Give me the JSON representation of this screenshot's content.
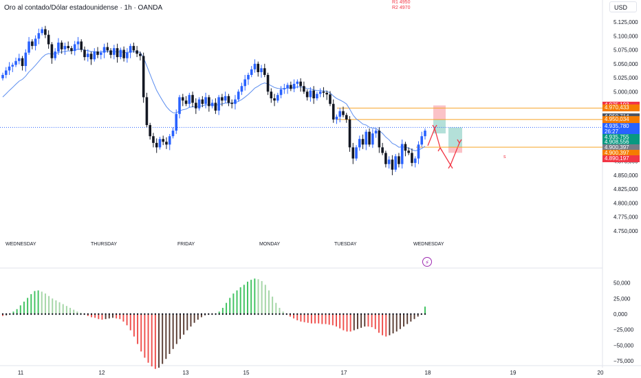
{
  "header": {
    "title": "Oro al contado/Dólar estadounidense · 1h · OANDA",
    "currency": "USD",
    "annotations": [
      "R1 4950",
      "R2 4970"
    ],
    "note": "s"
  },
  "colors": {
    "up": "#2962ff",
    "down": "#131722",
    "ma": "#5b8def",
    "osc_pos_bright": "#43c463",
    "osc_pos_dim": "#a5d6a7",
    "osc_neg_bright": "#ef5350",
    "osc_neg_dim": "#5d4037",
    "level": "#f7a325",
    "current": "#2962ff",
    "arrow": "#f23645"
  },
  "chart_data": [
    {
      "type": "candlestick",
      "title": "Oro al contado/Dólar estadounidense · 1h · OANDA",
      "ylim": [
        4730000,
        5150000
      ],
      "y_ticks": [
        "5.125,000",
        "5.100,000",
        "5.075,000",
        "5.050,000",
        "5.025,000",
        "5.000,000",
        "4.975,000",
        "4.950,000",
        "4.925,000",
        "4.900,000",
        "4.875,000",
        "4.850,000",
        "4.825,000",
        "4.800,000",
        "4.775,000",
        "4.750,000"
      ],
      "x_session_labels": [
        "WEDNESDAY",
        "THURSDAY",
        "FRIDAY",
        "MONDAY",
        "TUESDAY",
        "WEDNESDAY"
      ],
      "x_dates": [
        "11",
        "12",
        "13",
        "15",
        "17",
        "18",
        "19",
        "20"
      ],
      "closes": [
        5030,
        5038,
        5045,
        5048,
        5055,
        5060,
        5046,
        5070,
        5090,
        5082,
        5095,
        5105,
        5112,
        5102,
        5085,
        5060,
        5072,
        5088,
        5076,
        5082,
        5078,
        5073,
        5085,
        5090,
        5075,
        5062,
        5068,
        5058,
        5072,
        5066,
        5070,
        5080,
        5074,
        5066,
        5078,
        5062,
        5075,
        5060,
        5070,
        5082,
        5074,
        5068,
        5064,
        4990,
        4940,
        4920,
        4908,
        4900,
        4915,
        4910,
        4905,
        4920,
        4930,
        4960,
        4990,
        4984,
        4978,
        4994,
        4980,
        4970,
        4986,
        4978,
        4990,
        4974,
        4980,
        4966,
        4990,
        4984,
        4992,
        4980,
        4978,
        4986,
        5000,
        5010,
        5022,
        5030,
        5040,
        5050,
        5035,
        5042,
        5030,
        5000,
        4988,
        4984,
        4994,
        5004,
        5006,
        5012,
        5005,
        5014,
        5018,
        5010,
        5000,
        4990,
        5002,
        4988,
        4996,
        5000,
        4998,
        4995,
        4978,
        4950,
        4955,
        4965,
        4958,
        4950,
        4900,
        4880,
        4900,
        4915,
        4905,
        4928,
        4905,
        4925,
        4930,
        4900,
        4890,
        4870,
        4878,
        4860,
        4884,
        4870,
        4906,
        4894,
        4890,
        4872,
        4880,
        4905,
        4920,
        4930
      ],
      "ma_start": 4985,
      "price_tags": [
        {
          "label": "4.975,193",
          "value": 4975193,
          "color": "#f23645"
        },
        {
          "label": "4.970,433",
          "value": 4970433,
          "color": "#f57c00"
        },
        {
          "label": "4.950,714",
          "value": 4955000,
          "color": "#4d5563"
        },
        {
          "label": "4.950,034",
          "value": 4950034,
          "color": "#f57c00"
        },
        {
          "label": "4.935,780",
          "value": 4937500,
          "color": "#2962ff"
        },
        {
          "label": "26:27",
          "value": 4928000,
          "color": "#2962ff"
        },
        {
          "label": "4.935,755",
          "value": 4918000,
          "color": "#089981"
        },
        {
          "label": "4.908,556",
          "value": 4908556,
          "color": "#089981"
        },
        {
          "label": "4.900,397",
          "value": 4899000,
          "color": "#787b86"
        },
        {
          "label": "4.900,397",
          "value": 4889500,
          "color": "#f57c00"
        },
        {
          "label": "4.890,197",
          "value": 4880000,
          "color": "#f23645"
        }
      ],
      "levels": [
        4970433,
        4950034,
        4900397
      ],
      "current_price": 4935780
    },
    {
      "type": "bar",
      "title": "",
      "ylim": [
        -100000,
        75000
      ],
      "y_ticks": [
        "50,000",
        "25,000",
        "0,000",
        "−25,000",
        "−50,000",
        "−75,000"
      ],
      "values": [
        -3000,
        -2000,
        1000,
        4000,
        8000,
        14000,
        20000,
        26000,
        32000,
        37000,
        38000,
        36000,
        33000,
        29000,
        25000,
        22000,
        19000,
        16000,
        13000,
        10000,
        7000,
        4000,
        2000,
        -1000,
        -3000,
        -5000,
        -6000,
        -8000,
        -9000,
        -8000,
        -7000,
        -6000,
        -7000,
        -8000,
        -12000,
        -18000,
        -26000,
        -36000,
        -48000,
        -60000,
        -70000,
        -78000,
        -84000,
        -88000,
        -86000,
        -80000,
        -72000,
        -64000,
        -56000,
        -48000,
        -40000,
        -33000,
        -26000,
        -20000,
        -14000,
        -9000,
        -5000,
        -2000,
        -1000,
        -1000,
        1000,
        4000,
        10000,
        18000,
        26000,
        33000,
        38000,
        43000,
        47000,
        52000,
        55000,
        57000,
        56000,
        53000,
        47000,
        38000,
        28000,
        18000,
        10000,
        4000,
        -1000,
        -4000,
        -7000,
        -10000,
        -12000,
        -13000,
        -14000,
        -15000,
        -15000,
        -15000,
        -16000,
        -16000,
        -17000,
        -18000,
        -20000,
        -23000,
        -26000,
        -28000,
        -28000,
        -26000,
        -24000,
        -22000,
        -20000,
        -20000,
        -21000,
        -24000,
        -30000,
        -34000,
        -36000,
        -34000,
        -31000,
        -28000,
        -24000,
        -20000,
        -16000,
        -12000,
        -8000,
        -4000,
        -1000,
        12000
      ]
    }
  ]
}
